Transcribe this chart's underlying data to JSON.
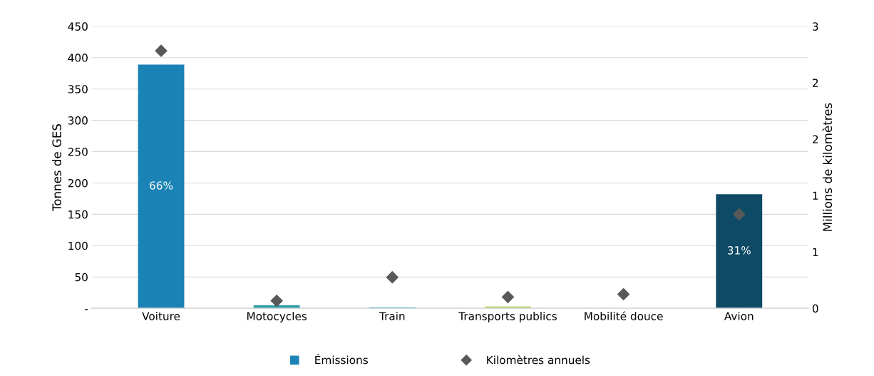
{
  "chart_data": {
    "type": "bar",
    "ylabel": "Tonnes de GES",
    "y2label": "Millions de kilomètres",
    "categories": [
      "Voiture",
      "Motocycles",
      "Train",
      "Transports publics",
      "Mobilité douce",
      "Avion"
    ],
    "series": [
      {
        "name": "Émissions",
        "color": "#1a82b5",
        "colors": [
          "#1a82b5",
          "#2a9aa8",
          "#4cb8d0",
          "#b5d36b",
          "#1a82b5",
          "#0e4a66"
        ],
        "values": [
          389,
          5,
          2,
          3,
          0,
          182
        ]
      },
      {
        "name": "Kilomètres annuels",
        "type": "scatter",
        "axis": "y2",
        "color": "#595959",
        "marker": "diamond",
        "values": [
          2.74,
          0.08,
          0.33,
          0.12,
          0.15,
          1.0
        ]
      }
    ],
    "ylim": [
      0,
      450
    ],
    "yticks": [
      {
        "value": 0,
        "label": "-"
      },
      50,
      100,
      150,
      200,
      250,
      300,
      350,
      400,
      450
    ],
    "y2lim": [
      0,
      3
    ],
    "y2ticks": [
      0,
      {
        "value": 0.6,
        "label": "1"
      },
      {
        "value": 1.2,
        "label": "1"
      },
      {
        "value": 1.8,
        "label": "2"
      },
      {
        "value": 2.4,
        "label": "2"
      },
      3
    ],
    "annotations": [
      "66%",
      "31%"
    ],
    "grid": "y",
    "legend": "bottom"
  }
}
